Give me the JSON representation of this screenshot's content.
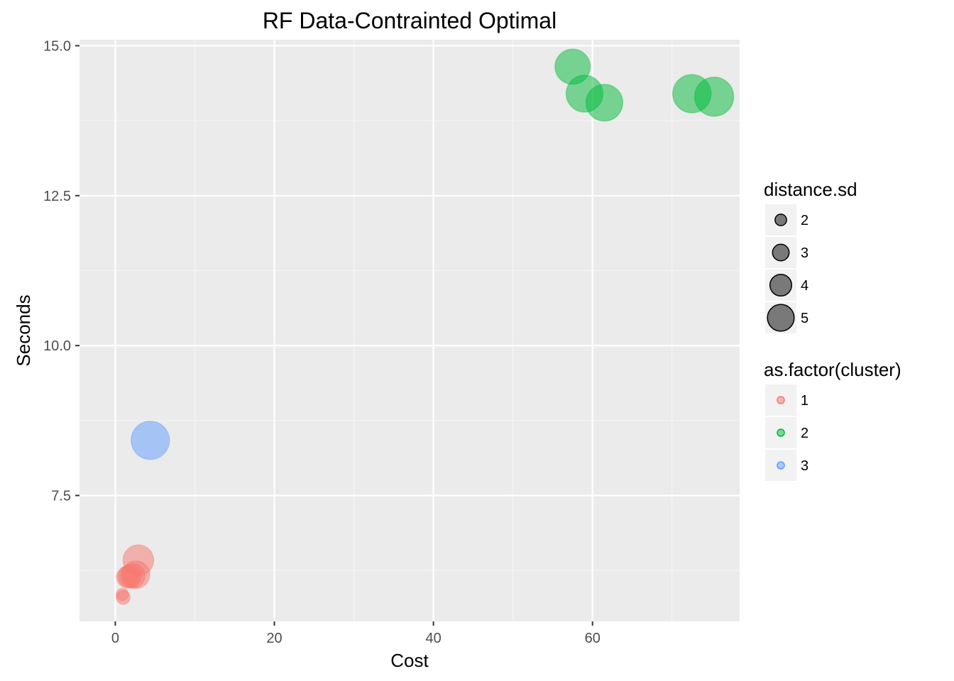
{
  "chart_data": {
    "type": "scatter",
    "title": "RF Data-Contrainted Optimal",
    "xlabel": "Cost",
    "ylabel": "Seconds",
    "xlim": [
      -4.5,
      78.5
    ],
    "ylim": [
      5.4,
      15.1
    ],
    "x_ticks": [
      0,
      20,
      40,
      60
    ],
    "y_ticks": [
      7.5,
      10.0,
      12.5,
      15.0
    ],
    "y_tick_labels": [
      "7.5",
      "10.0",
      "12.5",
      "15.0"
    ],
    "grid": true,
    "legend_position": "right",
    "size_legend": {
      "title": "distance.sd",
      "entries": [
        2,
        3,
        4,
        5
      ]
    },
    "color_legend": {
      "title": "as.factor(cluster)",
      "entries": [
        {
          "label": "1",
          "color": "#F8766D"
        },
        {
          "label": "2",
          "color": "#00BA38"
        },
        {
          "label": "3",
          "color": "#619CFF"
        }
      ]
    },
    "points": [
      {
        "x": 57.5,
        "y": 14.65,
        "size": 4.6,
        "cluster": "2"
      },
      {
        "x": 59.0,
        "y": 14.2,
        "size": 4.8,
        "cluster": "2"
      },
      {
        "x": 61.5,
        "y": 14.05,
        "size": 4.8,
        "cluster": "2"
      },
      {
        "x": 72.5,
        "y": 14.2,
        "size": 5.0,
        "cluster": "2"
      },
      {
        "x": 75.3,
        "y": 14.15,
        "size": 5.1,
        "cluster": "2"
      },
      {
        "x": 4.4,
        "y": 8.42,
        "size": 5.0,
        "cluster": "3"
      },
      {
        "x": 2.9,
        "y": 6.42,
        "size": 4.0,
        "cluster": "1"
      },
      {
        "x": 2.6,
        "y": 6.18,
        "size": 3.6,
        "cluster": "1"
      },
      {
        "x": 2.2,
        "y": 6.16,
        "size": 3.2,
        "cluster": "1"
      },
      {
        "x": 1.8,
        "y": 6.15,
        "size": 3.0,
        "cluster": "1"
      },
      {
        "x": 1.5,
        "y": 6.14,
        "size": 2.8,
        "cluster": "1"
      },
      {
        "x": 0.9,
        "y": 5.85,
        "size": 1.6,
        "cluster": "1"
      },
      {
        "x": 1.0,
        "y": 5.8,
        "size": 1.8,
        "cluster": "1"
      }
    ]
  }
}
